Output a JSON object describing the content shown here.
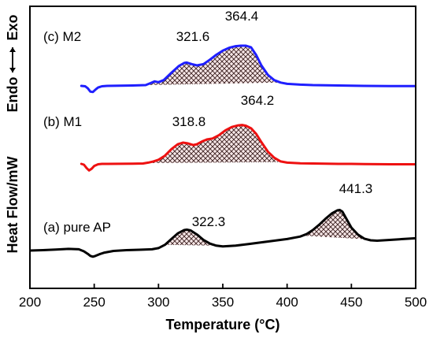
{
  "chart_data": {
    "type": "line",
    "xlabel": "Temperature (°C)",
    "ylabel": "Heat Flow/mW",
    "ylabel_endo": "Endo",
    "ylabel_exo": "Exo",
    "xlim": [
      200,
      500
    ],
    "xticks": [
      "200",
      "250",
      "300",
      "350",
      "400",
      "450",
      "500"
    ],
    "grid": false,
    "yticks_visible": false,
    "series": [
      {
        "name": "(c) M2",
        "color": "#1f1fff",
        "peak_labels": [
          {
            "x": 321.6,
            "label": "321.6"
          },
          {
            "x": 364.4,
            "label": "364.4"
          }
        ],
        "shaded_range": [
          290,
          395
        ],
        "x": [
          240,
          243,
          245,
          247,
          249,
          251,
          253,
          256,
          260,
          270,
          280,
          290,
          294,
          297,
          300,
          304,
          310,
          316,
          320,
          322,
          326,
          330,
          335,
          340,
          345,
          350,
          355,
          360,
          364,
          368,
          372,
          376,
          380,
          385,
          390,
          395,
          400,
          410,
          420,
          430,
          440,
          450,
          460,
          480,
          500
        ],
        "y": [
          0.0,
          -0.1,
          -0.6,
          -1.4,
          -1.5,
          -0.9,
          -0.4,
          -0.1,
          0.0,
          0.05,
          0.1,
          0.2,
          0.7,
          1.1,
          0.9,
          1.4,
          3.2,
          4.9,
          5.6,
          5.7,
          5.3,
          5.0,
          5.3,
          6.4,
          7.6,
          8.6,
          9.3,
          9.7,
          9.8,
          9.8,
          9.4,
          7.5,
          5.0,
          2.7,
          1.4,
          0.8,
          0.5,
          0.3,
          0.2,
          0.15,
          0.1,
          0.05,
          0.0,
          -0.05,
          -0.05
        ]
      },
      {
        "name": "(b) M1",
        "color": "#ee1111",
        "peak_labels": [
          {
            "x": 318.8,
            "label": "318.8"
          },
          {
            "x": 364.2,
            "label": "364.2"
          }
        ],
        "shaded_range": [
          290,
          398
        ],
        "x": [
          240,
          242,
          244,
          246,
          248,
          250,
          253,
          256,
          260,
          270,
          280,
          288,
          292,
          296,
          300,
          305,
          310,
          315,
          319,
          323,
          327,
          330,
          334,
          338,
          342,
          347,
          352,
          357,
          362,
          365,
          368,
          372,
          376,
          380,
          385,
          390,
          395,
          400,
          410,
          420,
          430,
          440,
          450,
          460,
          480,
          500
        ],
        "y": [
          0.0,
          -0.2,
          -1.0,
          -1.6,
          -1.2,
          -0.5,
          -0.1,
          0.0,
          0.0,
          0.02,
          0.05,
          0.1,
          0.3,
          0.6,
          1.0,
          2.0,
          3.6,
          4.8,
          5.2,
          5.0,
          4.6,
          4.8,
          5.5,
          6.0,
          6.2,
          7.0,
          8.2,
          9.0,
          9.4,
          9.5,
          9.3,
          8.7,
          7.3,
          5.3,
          3.0,
          1.5,
          0.6,
          0.3,
          0.15,
          0.1,
          0.05,
          0.0,
          0.0,
          -0.05,
          -0.1,
          -0.1
        ]
      },
      {
        "name": "(a) pure AP",
        "color": "#000000",
        "peak_labels": [
          {
            "x": 322.3,
            "label": "322.3"
          },
          {
            "x": 441.3,
            "label": "441.3"
          }
        ],
        "shaded_ranges": [
          [
            305,
            345
          ],
          [
            412,
            462
          ]
        ],
        "x": [
          200,
          210,
          220,
          230,
          238,
          242,
          245,
          247,
          249,
          251,
          254,
          258,
          265,
          275,
          285,
          295,
          300,
          305,
          310,
          315,
          320,
          322,
          325,
          330,
          335,
          340,
          345,
          350,
          360,
          370,
          380,
          390,
          400,
          410,
          415,
          420,
          425,
          430,
          435,
          439,
          441,
          443,
          446,
          450,
          455,
          460,
          465,
          470,
          480,
          490,
          500
        ],
        "y": [
          0.0,
          0.1,
          0.25,
          0.4,
          0.3,
          -0.2,
          -0.8,
          -1.3,
          -1.5,
          -1.3,
          -0.9,
          -0.5,
          -0.1,
          0.1,
          0.2,
          0.3,
          0.6,
          1.4,
          2.8,
          4.2,
          5.0,
          5.1,
          4.9,
          3.9,
          2.6,
          1.7,
          1.2,
          1.0,
          1.2,
          1.6,
          2.0,
          2.4,
          2.8,
          3.4,
          4.0,
          5.0,
          6.3,
          7.8,
          9.1,
          9.8,
          9.9,
          9.5,
          7.8,
          5.6,
          3.9,
          2.9,
          2.5,
          2.4,
          2.6,
          2.8,
          3.0
        ]
      }
    ]
  }
}
